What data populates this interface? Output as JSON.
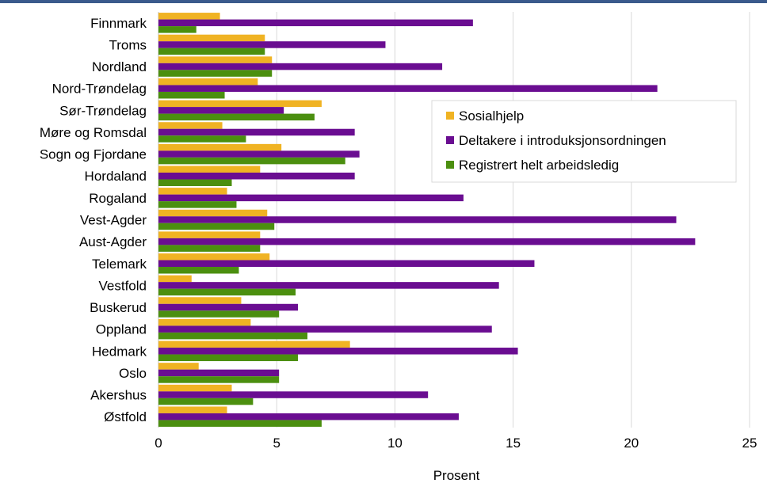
{
  "chart_data": {
    "type": "bar",
    "orientation": "horizontal",
    "categories": [
      "Finnmark",
      "Troms",
      "Nordland",
      "Nord-Trøndelag",
      "Sør-Trøndelag",
      "Møre og Romsdal",
      "Sogn og Fjordane",
      "Hordaland",
      "Rogaland",
      "Vest-Agder",
      "Aust-Agder",
      "Telemark",
      "Vestfold",
      "Buskerud",
      "Oppland",
      "Hedmark",
      "Oslo",
      "Akershus",
      "Østfold"
    ],
    "series": [
      {
        "name": "Sosialhjelp",
        "color": "#f0b323",
        "values": [
          2.6,
          4.5,
          4.8,
          4.2,
          6.9,
          2.7,
          5.2,
          4.3,
          2.9,
          4.6,
          4.3,
          4.7,
          1.4,
          3.5,
          3.9,
          8.1,
          1.7,
          3.1,
          2.9
        ]
      },
      {
        "name": "Deltakere i introduksjonsordningen",
        "color": "#6a0d91",
        "values": [
          13.3,
          9.6,
          12.0,
          21.1,
          5.3,
          8.3,
          8.5,
          8.3,
          12.9,
          21.9,
          22.7,
          15.9,
          14.4,
          5.9,
          14.1,
          15.2,
          5.1,
          11.4,
          12.7
        ]
      },
      {
        "name": "Registrert helt arbeidsledig",
        "color": "#4b8f0f",
        "values": [
          1.6,
          4.5,
          4.8,
          2.8,
          6.6,
          3.7,
          7.9,
          3.1,
          3.3,
          4.9,
          4.3,
          3.4,
          5.8,
          5.1,
          6.3,
          5.9,
          5.1,
          4.0,
          6.9
        ]
      }
    ],
    "xlim": [
      0,
      25
    ],
    "x_ticks": [
      0,
      5,
      10,
      15,
      20,
      25
    ],
    "xlabel": "Prosent",
    "grid": true,
    "legend_position": "right-middle"
  }
}
